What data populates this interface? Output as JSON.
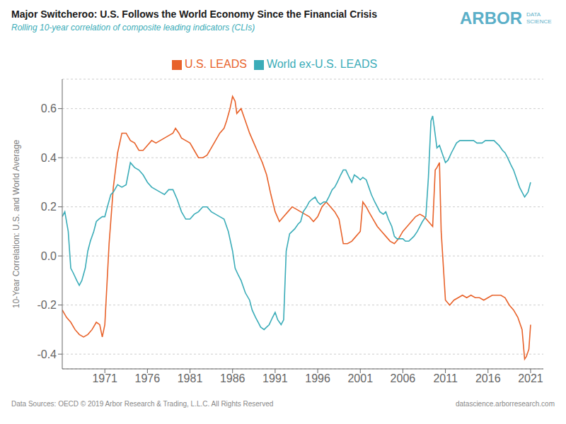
{
  "chart_data": {
    "type": "line",
    "title": "Major Switcheroo: U.S. Follows the World Economy Since the Financial Crisis",
    "subtitle": "Rolling 10-year correlation of composite leading indicators (CLIs)",
    "y_label": "10-Year Correlation: U.S. and World Average",
    "annotations": [
      "ARBOR",
      "DATA SCIENCE",
      "Data Sources: OECD © 2019 Arbor Research & Trading, L.L.C. All Rights Reserved",
      "datascience.arborresearch.com"
    ],
    "xlim": [
      1966.0,
      2022.5
    ],
    "ylim": [
      -0.46,
      0.72
    ],
    "xticks": [
      1971,
      1976,
      1981,
      1986,
      1991,
      1996,
      2001,
      2006,
      2011,
      2016,
      2021
    ],
    "yticks": [
      -0.4,
      -0.2,
      {
        "value": 0.0,
        "label": "0.0"
      },
      0.2,
      0.4,
      0.6
    ],
    "grid": true,
    "legend": "top",
    "series": [
      {
        "name": "U.S. LEADS",
        "color": "#E8622A",
        "x": [
          1966.0,
          1966.5,
          1967.0,
          1967.5,
          1968.0,
          1968.5,
          1969.0,
          1969.5,
          1970.0,
          1970.4,
          1970.7,
          1971.0,
          1971.5,
          1972.0,
          1972.5,
          1973.0,
          1973.5,
          1974.0,
          1974.5,
          1975.0,
          1975.5,
          1976.0,
          1976.5,
          1977.0,
          1977.5,
          1978.0,
          1978.5,
          1979.0,
          1979.3,
          1979.7,
          1980.0,
          1980.5,
          1981.0,
          1981.5,
          1982.0,
          1982.5,
          1983.0,
          1983.5,
          1984.0,
          1984.5,
          1985.0,
          1985.3,
          1985.7,
          1986.0,
          1986.3,
          1986.5,
          1987.0,
          1987.5,
          1988.0,
          1988.5,
          1989.0,
          1989.5,
          1990.0,
          1990.5,
          1991.0,
          1991.5,
          1992.0,
          1992.5,
          1993.0,
          1993.5,
          1994.0,
          1994.5,
          1995.0,
          1995.5,
          1996.0,
          1996.5,
          1997.0,
          1997.5,
          1998.0,
          1998.5,
          1999.0,
          1999.5,
          2000.0,
          2000.5,
          2001.0,
          2001.3,
          2001.7,
          2002.0,
          2002.5,
          2003.0,
          2003.5,
          2004.0,
          2004.5,
          2005.0,
          2005.5,
          2006.0,
          2006.5,
          2007.0,
          2007.5,
          2008.0,
          2008.5,
          2009.0,
          2009.5,
          2009.8,
          2010.0,
          2010.3,
          2010.5,
          2011.0,
          2011.5,
          2012.0,
          2012.5,
          2013.0,
          2013.5,
          2014.0,
          2014.5,
          2015.0,
          2015.5,
          2016.0,
          2016.5,
          2017.0,
          2017.5,
          2018.0,
          2018.5,
          2019.0,
          2019.5,
          2020.0,
          2020.3,
          2020.5,
          2020.8,
          2021.0
        ],
        "values": [
          -0.22,
          -0.25,
          -0.27,
          -0.3,
          -0.32,
          -0.33,
          -0.32,
          -0.3,
          -0.27,
          -0.28,
          -0.33,
          -0.28,
          0.05,
          0.28,
          0.42,
          0.5,
          0.5,
          0.47,
          0.46,
          0.43,
          0.43,
          0.45,
          0.47,
          0.46,
          0.47,
          0.48,
          0.49,
          0.5,
          0.52,
          0.5,
          0.48,
          0.47,
          0.46,
          0.43,
          0.4,
          0.4,
          0.41,
          0.44,
          0.47,
          0.5,
          0.52,
          0.55,
          0.6,
          0.65,
          0.63,
          0.58,
          0.6,
          0.55,
          0.5,
          0.46,
          0.42,
          0.38,
          0.33,
          0.25,
          0.18,
          0.14,
          0.16,
          0.18,
          0.2,
          0.19,
          0.18,
          0.17,
          0.16,
          0.14,
          0.16,
          0.2,
          0.22,
          0.2,
          0.18,
          0.15,
          0.05,
          0.05,
          0.06,
          0.08,
          0.1,
          0.22,
          0.2,
          0.18,
          0.15,
          0.12,
          0.1,
          0.08,
          0.06,
          0.05,
          0.07,
          0.1,
          0.12,
          0.14,
          0.16,
          0.17,
          0.16,
          0.14,
          0.12,
          0.35,
          0.36,
          0.38,
          0.1,
          -0.18,
          -0.2,
          -0.18,
          -0.17,
          -0.16,
          -0.17,
          -0.16,
          -0.17,
          -0.17,
          -0.18,
          -0.17,
          -0.16,
          -0.16,
          -0.16,
          -0.17,
          -0.2,
          -0.22,
          -0.25,
          -0.3,
          -0.42,
          -0.41,
          -0.38,
          -0.28
        ]
      },
      {
        "name": "World ex-U.S. LEADS",
        "color": "#3AACB8",
        "x": [
          1966.0,
          1966.3,
          1966.7,
          1967.0,
          1967.3,
          1967.7,
          1968.0,
          1968.3,
          1968.7,
          1969.0,
          1969.3,
          1969.7,
          1970.0,
          1970.3,
          1970.7,
          1971.0,
          1971.3,
          1971.7,
          1972.0,
          1972.5,
          1973.0,
          1973.5,
          1974.0,
          1974.5,
          1975.0,
          1975.5,
          1976.0,
          1976.5,
          1977.0,
          1977.5,
          1978.0,
          1978.5,
          1979.0,
          1979.5,
          1980.0,
          1980.5,
          1981.0,
          1981.5,
          1982.0,
          1982.5,
          1983.0,
          1983.5,
          1984.0,
          1984.5,
          1985.0,
          1985.5,
          1986.0,
          1986.3,
          1986.7,
          1987.0,
          1987.5,
          1988.0,
          1988.3,
          1988.7,
          1989.0,
          1989.3,
          1989.7,
          1990.0,
          1990.3,
          1990.7,
          1991.0,
          1991.3,
          1991.7,
          1992.0,
          1992.3,
          1992.7,
          1993.0,
          1993.3,
          1993.7,
          1994.0,
          1994.3,
          1994.7,
          1995.0,
          1995.3,
          1995.7,
          1996.0,
          1996.3,
          1996.7,
          1997.0,
          1997.3,
          1997.7,
          1998.0,
          1998.3,
          1998.7,
          1999.0,
          1999.3,
          1999.7,
          2000.0,
          2000.3,
          2000.7,
          2001.0,
          2001.3,
          2001.7,
          2002.0,
          2002.3,
          2002.7,
          2003.0,
          2003.3,
          2003.7,
          2004.0,
          2004.3,
          2004.7,
          2005.0,
          2005.3,
          2005.7,
          2006.0,
          2006.3,
          2006.7,
          2007.0,
          2007.3,
          2007.7,
          2008.0,
          2008.3,
          2008.7,
          2009.0,
          2009.3,
          2009.5,
          2009.7,
          2010.0,
          2010.3,
          2010.7,
          2011.0,
          2011.3,
          2011.7,
          2012.0,
          2012.3,
          2012.7,
          2013.0,
          2013.3,
          2013.7,
          2014.0,
          2014.3,
          2014.7,
          2015.0,
          2015.3,
          2015.7,
          2016.0,
          2016.3,
          2016.7,
          2017.0,
          2017.3,
          2017.7,
          2018.0,
          2018.3,
          2018.7,
          2019.0,
          2019.3,
          2019.7,
          2020.0,
          2020.3,
          2020.7,
          2021.0
        ],
        "values": [
          0.16,
          0.18,
          0.1,
          -0.05,
          -0.07,
          -0.1,
          -0.12,
          -0.1,
          -0.05,
          0.02,
          0.06,
          0.1,
          0.14,
          0.15,
          0.16,
          0.16,
          0.2,
          0.25,
          0.26,
          0.29,
          0.28,
          0.29,
          0.38,
          0.36,
          0.35,
          0.33,
          0.3,
          0.28,
          0.27,
          0.26,
          0.25,
          0.27,
          0.27,
          0.23,
          0.18,
          0.15,
          0.15,
          0.17,
          0.18,
          0.2,
          0.2,
          0.18,
          0.17,
          0.16,
          0.15,
          0.1,
          0.02,
          -0.05,
          -0.08,
          -0.1,
          -0.15,
          -0.18,
          -0.22,
          -0.25,
          -0.27,
          -0.29,
          -0.3,
          -0.29,
          -0.28,
          -0.25,
          -0.23,
          -0.26,
          -0.28,
          -0.26,
          0.02,
          0.09,
          0.1,
          0.11,
          0.13,
          0.14,
          0.18,
          0.2,
          0.22,
          0.23,
          0.24,
          0.22,
          0.21,
          0.22,
          0.22,
          0.24,
          0.27,
          0.28,
          0.3,
          0.33,
          0.35,
          0.35,
          0.32,
          0.3,
          0.33,
          0.32,
          0.31,
          0.32,
          0.31,
          0.28,
          0.25,
          0.22,
          0.2,
          0.18,
          0.17,
          0.18,
          0.15,
          0.12,
          0.08,
          0.07,
          0.07,
          0.07,
          0.06,
          0.06,
          0.07,
          0.08,
          0.1,
          0.12,
          0.14,
          0.16,
          0.32,
          0.55,
          0.57,
          0.52,
          0.44,
          0.45,
          0.41,
          0.38,
          0.39,
          0.42,
          0.44,
          0.46,
          0.47,
          0.47,
          0.47,
          0.47,
          0.47,
          0.47,
          0.46,
          0.46,
          0.46,
          0.47,
          0.47,
          0.47,
          0.47,
          0.46,
          0.45,
          0.43,
          0.42,
          0.4,
          0.37,
          0.35,
          0.32,
          0.28,
          0.26,
          0.24,
          0.26,
          0.3
        ]
      }
    ]
  }
}
